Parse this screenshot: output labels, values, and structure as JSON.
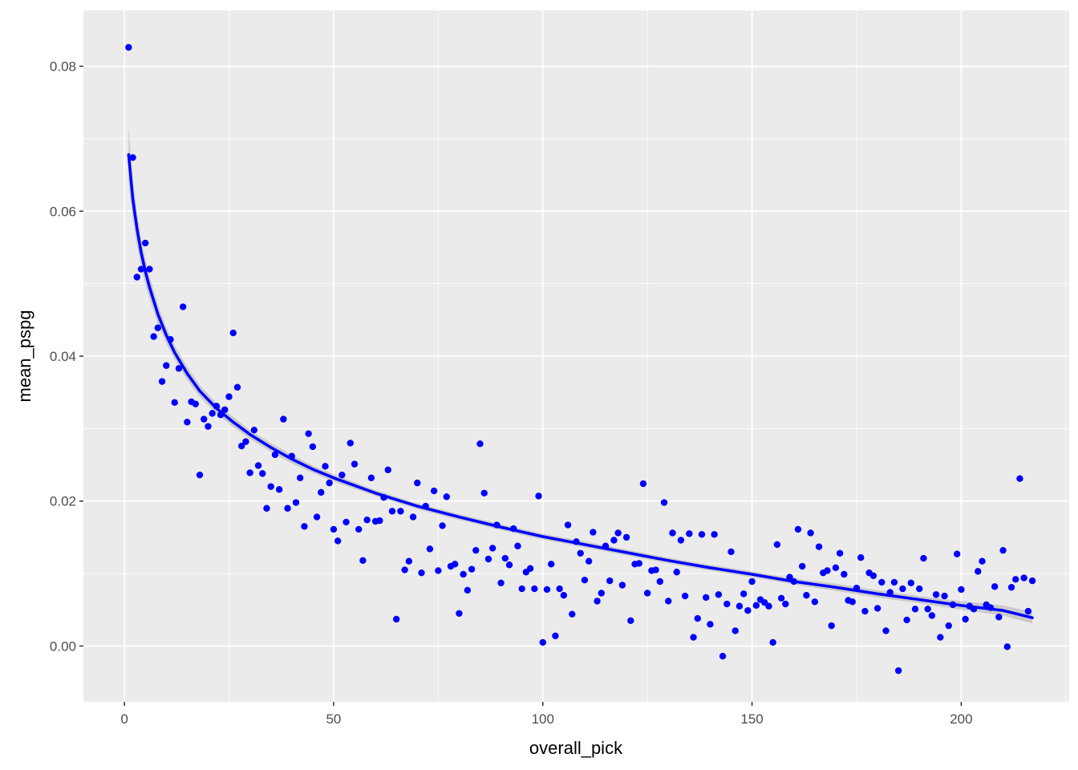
{
  "chart_data": {
    "type": "scatter",
    "title": "",
    "xlabel": "overall_pick",
    "ylabel": "mean_pspg",
    "xlim": [
      -9.8,
      225.8
    ],
    "ylim": [
      -0.0077,
      0.0877
    ],
    "x_ticks": [
      0,
      50,
      100,
      150,
      200
    ],
    "x_tick_labels": [
      "0",
      "50",
      "100",
      "150",
      "200"
    ],
    "y_ticks": [
      0.0,
      0.02,
      0.04,
      0.06,
      0.08
    ],
    "y_tick_labels": [
      "0.00",
      "0.02",
      "0.04",
      "0.06",
      "0.08"
    ],
    "grid": true,
    "legend": "none",
    "panel_background": "#ebebeb",
    "point_color": "#0000ff",
    "series": [
      {
        "kind": "points",
        "x": [
          1,
          2,
          3,
          4,
          5,
          6,
          7,
          8,
          9,
          10,
          11,
          12,
          13,
          14,
          15,
          16,
          17,
          18,
          19,
          20,
          21,
          22,
          23,
          24,
          25,
          26,
          27,
          28,
          29,
          30,
          31,
          32,
          33,
          34,
          35,
          36,
          37,
          38,
          39,
          40,
          41,
          42,
          43,
          44,
          45,
          46,
          47,
          48,
          49,
          50,
          51,
          52,
          53,
          54,
          55,
          56,
          57,
          58,
          59,
          60,
          61,
          62,
          63,
          64,
          65,
          66,
          67,
          68,
          69,
          70,
          71,
          72,
          73,
          74,
          75,
          76,
          77,
          78,
          79,
          80,
          81,
          82,
          83,
          84,
          85,
          86,
          87,
          88,
          89,
          90,
          91,
          92,
          93,
          94,
          95,
          96,
          97,
          98,
          99,
          100,
          101,
          102,
          103,
          104,
          105,
          106,
          107,
          108,
          109,
          110,
          111,
          112,
          113,
          114,
          115,
          116,
          117,
          118,
          119,
          120,
          121,
          122,
          123,
          124,
          125,
          126,
          127,
          128,
          129,
          130,
          131,
          132,
          133,
          134,
          135,
          136,
          137,
          138,
          139,
          140,
          141,
          142,
          143,
          144,
          145,
          146,
          147,
          148,
          149,
          150,
          151,
          152,
          153,
          154,
          155,
          156,
          157,
          158,
          159,
          160,
          161,
          162,
          163,
          164,
          165,
          166,
          167,
          168,
          169,
          170,
          171,
          172,
          173,
          174,
          175,
          176,
          177,
          178,
          179,
          180,
          181,
          182,
          183,
          184,
          185,
          186,
          187,
          188,
          189,
          190,
          191,
          192,
          193,
          194,
          195,
          196,
          197,
          198,
          199,
          200,
          201,
          202,
          203,
          204,
          205,
          206,
          207,
          208,
          209,
          210,
          211,
          212,
          213,
          214,
          215,
          216,
          217
        ],
        "y": [
          0.0826,
          0.0674,
          0.0509,
          0.052,
          0.0556,
          0.052,
          0.0427,
          0.0439,
          0.0365,
          0.0387,
          0.0423,
          0.0336,
          0.0383,
          0.0468,
          0.0309,
          0.0337,
          0.0334,
          0.0236,
          0.0313,
          0.0303,
          0.0321,
          0.0331,
          0.0319,
          0.0326,
          0.0344,
          0.0432,
          0.0357,
          0.0276,
          0.0282,
          0.0239,
          0.0298,
          0.0249,
          0.0238,
          0.019,
          0.022,
          0.0264,
          0.0216,
          0.0313,
          0.019,
          0.0262,
          0.0198,
          0.0232,
          0.0165,
          0.0293,
          0.0275,
          0.0178,
          0.0212,
          0.0248,
          0.0225,
          0.0161,
          0.0145,
          0.0236,
          0.0171,
          0.028,
          0.0251,
          0.0161,
          0.0118,
          0.0174,
          0.0232,
          0.0172,
          0.0173,
          0.0205,
          0.0243,
          0.0186,
          0.0037,
          0.0186,
          0.0105,
          0.0117,
          0.0178,
          0.0225,
          0.0101,
          0.0193,
          0.0134,
          0.0214,
          0.0104,
          0.0166,
          0.0206,
          0.011,
          0.0113,
          0.0045,
          0.0099,
          0.0077,
          0.0106,
          0.0132,
          0.0279,
          0.0211,
          0.012,
          0.0135,
          0.0167,
          0.0087,
          0.0121,
          0.0112,
          0.0162,
          0.0138,
          0.0079,
          0.0102,
          0.0107,
          0.0079,
          0.0207,
          0.0005,
          0.0078,
          0.0113,
          0.0014,
          0.0079,
          0.007,
          0.0167,
          0.0044,
          0.0144,
          0.0128,
          0.0091,
          0.0117,
          0.0157,
          0.0062,
          0.0073,
          0.0138,
          0.009,
          0.0146,
          0.0156,
          0.0084,
          0.015,
          0.0035,
          0.0113,
          0.0114,
          0.0224,
          0.0073,
          0.0104,
          0.0105,
          0.0089,
          0.0198,
          0.0062,
          0.0156,
          0.0102,
          0.0146,
          0.0069,
          0.0155,
          0.0012,
          0.0038,
          0.0154,
          0.0067,
          0.003,
          0.0154,
          0.0071,
          -0.0014,
          0.0058,
          0.013,
          0.0021,
          0.0055,
          0.0072,
          0.0049,
          0.0089,
          0.0056,
          0.0064,
          0.006,
          0.0055,
          0.0005,
          0.014,
          0.0066,
          0.0058,
          0.0095,
          0.0089,
          0.0161,
          0.011,
          0.007,
          0.0156,
          0.0061,
          0.0137,
          0.0101,
          0.0104,
          0.0028,
          0.0108,
          0.0128,
          0.0099,
          0.0063,
          0.0061,
          0.008,
          0.0122,
          0.0048,
          0.0101,
          0.0097,
          0.0052,
          0.0088,
          0.0021,
          0.0074,
          0.0088,
          -0.0034,
          0.0079,
          0.0036,
          0.0087,
          0.0051,
          0.0079,
          0.0121,
          0.0051,
          0.0042,
          0.0071,
          0.0012,
          0.0069,
          0.0028,
          0.0057,
          0.0127,
          0.0078,
          0.0037,
          0.0055,
          0.0051,
          0.0103,
          0.0117,
          0.0057,
          0.0053,
          0.0082,
          0.004,
          0.0132,
          -0.0001,
          0.0081,
          0.0092,
          0.0231,
          0.0094,
          0.0048,
          0.009
        ]
      },
      {
        "kind": "smooth",
        "x": [
          1,
          2,
          3,
          4,
          5,
          6,
          8,
          10,
          12,
          15,
          18,
          22,
          26,
          30,
          35,
          40,
          45,
          50,
          60,
          70,
          80,
          90,
          100,
          110,
          120,
          130,
          140,
          150,
          160,
          170,
          180,
          190,
          200,
          210,
          217
        ],
        "y": [
          0.0678,
          0.0617,
          0.0576,
          0.0543,
          0.0517,
          0.0495,
          0.0458,
          0.0429,
          0.0405,
          0.0376,
          0.0352,
          0.0328,
          0.0309,
          0.0292,
          0.0274,
          0.0258,
          0.0244,
          0.0232,
          0.0211,
          0.0193,
          0.0178,
          0.0164,
          0.0151,
          0.014,
          0.0129,
          0.0118,
          0.0108,
          0.0099,
          0.0089,
          0.0081,
          0.0072,
          0.0064,
          0.0056,
          0.0049,
          0.0039
        ],
        "band_low": [
          0.0641,
          0.0589,
          0.0553,
          0.0524,
          0.05,
          0.0479,
          0.0445,
          0.0418,
          0.0395,
          0.0367,
          0.0344,
          0.0321,
          0.0302,
          0.0286,
          0.0268,
          0.0252,
          0.0239,
          0.0227,
          0.0207,
          0.0189,
          0.0174,
          0.016,
          0.0147,
          0.0136,
          0.0125,
          0.0114,
          0.0104,
          0.0095,
          0.0085,
          0.0076,
          0.0067,
          0.0059,
          0.005,
          0.0042,
          0.0031
        ],
        "band_high": [
          0.0715,
          0.0645,
          0.0599,
          0.0562,
          0.0534,
          0.0511,
          0.0471,
          0.044,
          0.0415,
          0.0385,
          0.036,
          0.0335,
          0.0316,
          0.0298,
          0.028,
          0.0264,
          0.0249,
          0.0237,
          0.0215,
          0.0197,
          0.0182,
          0.0168,
          0.0155,
          0.0144,
          0.0133,
          0.0122,
          0.0112,
          0.0103,
          0.0093,
          0.0086,
          0.0077,
          0.0069,
          0.0062,
          0.0056,
          0.0047
        ]
      }
    ]
  }
}
